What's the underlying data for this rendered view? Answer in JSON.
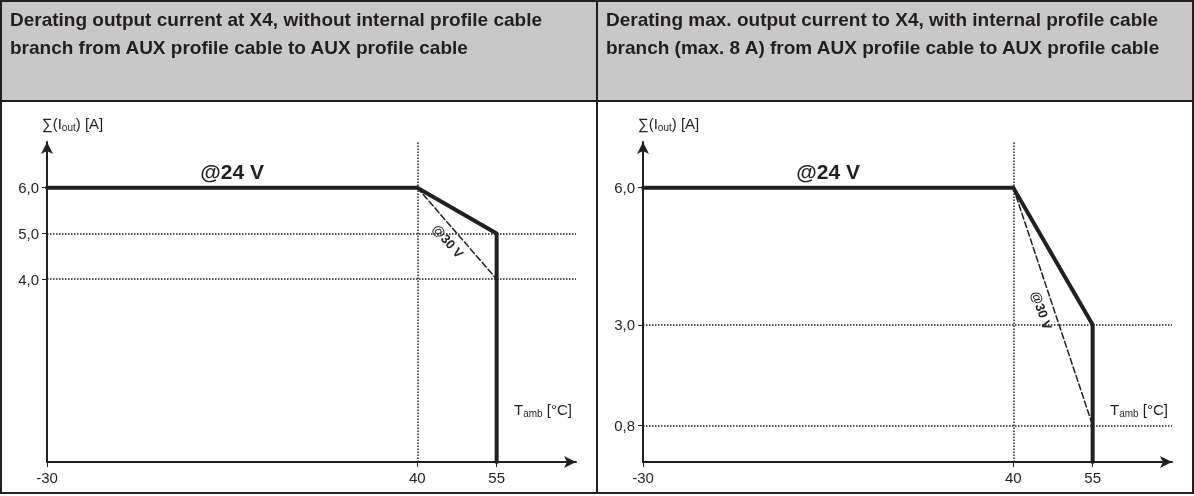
{
  "chart_data": [
    {
      "type": "line",
      "title": "Derating output current at X4, without internal profile cable branch from AUX profile cable to AUX profile cable",
      "xlabel": "T$_{amb}$ [°C]",
      "ylabel": "∑(I$_{out}$) [A]",
      "xlim": [
        -30,
        70
      ],
      "ylim": [
        0,
        7
      ],
      "xticks": [
        -30,
        40,
        55
      ],
      "yticks": [
        {
          "value": 4,
          "label": "4,0"
        },
        {
          "value": 5,
          "label": "5,0"
        },
        {
          "value": 6,
          "label": "6,0"
        }
      ],
      "grid": false,
      "legend": false,
      "marker": "none",
      "series": [
        {
          "name": "@24 V",
          "color": "#231f20",
          "line_style": "solid",
          "x": [
            -30,
            40,
            55,
            55
          ],
          "values": [
            6,
            6,
            5,
            0
          ]
        },
        {
          "name": "@30 V",
          "color": "#231f20",
          "line_style": "dashed",
          "x": [
            40,
            55
          ],
          "values": [
            6,
            4
          ]
        }
      ],
      "ref_lines": [
        {
          "axis": "y",
          "value": 5,
          "line_style": "dotted",
          "color": "#231f20"
        },
        {
          "axis": "y",
          "value": 4,
          "line_style": "dotted",
          "color": "#231f20"
        },
        {
          "axis": "x",
          "value": 40,
          "line_style": "dotted",
          "color": "#231f20"
        }
      ]
    },
    {
      "type": "line",
      "title": "Derating max. output current to X4, with internal profile cable branch (max. 8 A) from AUX profile cable to AUX profile cable",
      "xlabel": "T$_{amb}$ [°C]",
      "ylabel": "∑(I$_{out}$) [A]",
      "xlim": [
        -30,
        70
      ],
      "ylim": [
        0,
        7
      ],
      "xticks": [
        -30,
        40,
        55
      ],
      "yticks": [
        {
          "value": 0.8,
          "label": "0,8"
        },
        {
          "value": 3,
          "label": "3,0"
        },
        {
          "value": 6,
          "label": "6,0"
        }
      ],
      "grid": false,
      "legend": false,
      "marker": "none",
      "series": [
        {
          "name": "@24 V",
          "color": "#231f20",
          "line_style": "solid",
          "x": [
            -30,
            40,
            55,
            55
          ],
          "values": [
            6,
            6,
            3,
            0
          ]
        },
        {
          "name": "@30 V",
          "color": "#231f20",
          "line_style": "dashed",
          "x": [
            40,
            55
          ],
          "values": [
            6,
            0.8
          ]
        }
      ],
      "ref_lines": [
        {
          "axis": "y",
          "value": 3,
          "line_style": "dotted",
          "color": "#231f20"
        },
        {
          "axis": "y",
          "value": 0.8,
          "line_style": "dotted",
          "color": "#231f20"
        },
        {
          "axis": "x",
          "value": 40,
          "line_style": "dotted",
          "color": "#231f20"
        }
      ]
    }
  ]
}
